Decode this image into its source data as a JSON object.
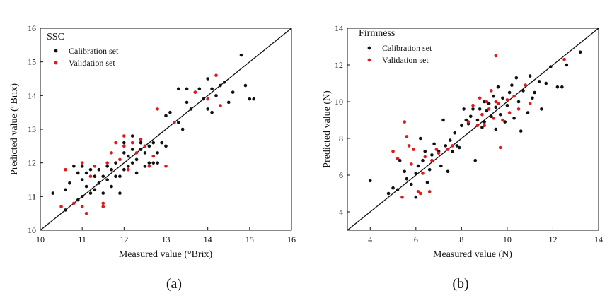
{
  "chart_data": [
    {
      "type": "scatter",
      "panel_label": "(a)",
      "title": "SSC",
      "xlabel": "Measured value (°Brix)",
      "ylabel": "Predicted value (°Brix)",
      "xlim": [
        10,
        16
      ],
      "ylim": [
        10,
        16
      ],
      "xticks": [
        10,
        11,
        12,
        13,
        14,
        15,
        16
      ],
      "yticks": [
        10,
        11,
        12,
        13,
        14,
        15,
        16
      ],
      "fit_line": {
        "x": [
          10,
          16
        ],
        "y": [
          10,
          16
        ]
      },
      "legend": {
        "position": "top-left",
        "entries": [
          "Calibration set",
          "Validation set"
        ]
      },
      "series": [
        {
          "name": "Calibration set",
          "color": "#111111",
          "points": [
            [
              10.3,
              11.1
            ],
            [
              10.6,
              10.6
            ],
            [
              10.6,
              11.2
            ],
            [
              10.7,
              11.4
            ],
            [
              10.8,
              11.9
            ],
            [
              10.9,
              10.9
            ],
            [
              10.9,
              11.7
            ],
            [
              11.0,
              11.0
            ],
            [
              11.0,
              11.5
            ],
            [
              11.0,
              11.9
            ],
            [
              11.1,
              11.3
            ],
            [
              11.1,
              11.7
            ],
            [
              11.2,
              11.1
            ],
            [
              11.2,
              11.8
            ],
            [
              11.3,
              11.2
            ],
            [
              11.3,
              11.6
            ],
            [
              11.4,
              11.4
            ],
            [
              11.4,
              11.8
            ],
            [
              11.5,
              11.1
            ],
            [
              11.5,
              11.6
            ],
            [
              11.6,
              11.5
            ],
            [
              11.6,
              11.9
            ],
            [
              11.7,
              11.3
            ],
            [
              11.7,
              11.8
            ],
            [
              11.8,
              11.6
            ],
            [
              11.8,
              12.0
            ],
            [
              11.9,
              11.1
            ],
            [
              11.9,
              11.6
            ],
            [
              12.0,
              11.8
            ],
            [
              12.0,
              12.3
            ],
            [
              12.0,
              12.6
            ],
            [
              12.1,
              11.9
            ],
            [
              12.1,
              12.2
            ],
            [
              12.2,
              12.0
            ],
            [
              12.2,
              12.4
            ],
            [
              12.2,
              12.8
            ],
            [
              12.3,
              11.7
            ],
            [
              12.3,
              12.1
            ],
            [
              12.4,
              12.4
            ],
            [
              12.4,
              12.6
            ],
            [
              12.5,
              11.9
            ],
            [
              12.5,
              12.3
            ],
            [
              12.6,
              12.0
            ],
            [
              12.6,
              12.5
            ],
            [
              12.7,
              12.0
            ],
            [
              12.7,
              12.6
            ],
            [
              12.8,
              12.0
            ],
            [
              12.8,
              12.3
            ],
            [
              12.9,
              12.6
            ],
            [
              13.0,
              12.5
            ],
            [
              13.0,
              13.4
            ],
            [
              13.1,
              13.5
            ],
            [
              13.3,
              13.2
            ],
            [
              13.3,
              14.2
            ],
            [
              13.4,
              13.0
            ],
            [
              13.5,
              13.8
            ],
            [
              13.5,
              14.2
            ],
            [
              13.6,
              13.6
            ],
            [
              13.7,
              14.1
            ],
            [
              13.8,
              14.2
            ],
            [
              13.9,
              13.9
            ],
            [
              14.0,
              14.5
            ],
            [
              14.0,
              13.6
            ],
            [
              14.1,
              14.2
            ],
            [
              14.1,
              13.5
            ],
            [
              14.2,
              14.0
            ],
            [
              14.3,
              14.3
            ],
            [
              14.3,
              13.7
            ],
            [
              14.4,
              14.4
            ],
            [
              14.5,
              13.8
            ],
            [
              14.6,
              14.1
            ],
            [
              14.8,
              15.2
            ],
            [
              14.9,
              14.3
            ],
            [
              15.0,
              13.9
            ],
            [
              15.1,
              13.9
            ]
          ]
        },
        {
          "name": "Validation set",
          "color": "#e01a1a",
          "points": [
            [
              10.5,
              10.7
            ],
            [
              10.6,
              11.8
            ],
            [
              10.8,
              10.8
            ],
            [
              11.0,
              10.7
            ],
            [
              11.0,
              12.0
            ],
            [
              11.1,
              10.5
            ],
            [
              11.2,
              11.6
            ],
            [
              11.3,
              11.9
            ],
            [
              11.5,
              10.8
            ],
            [
              11.5,
              10.7
            ],
            [
              11.6,
              12.0
            ],
            [
              11.7,
              12.3
            ],
            [
              11.8,
              12.6
            ],
            [
              11.9,
              12.1
            ],
            [
              12.0,
              12.5
            ],
            [
              12.0,
              12.8
            ],
            [
              12.1,
              11.8
            ],
            [
              12.2,
              12.6
            ],
            [
              12.3,
              12.3
            ],
            [
              12.4,
              12.7
            ],
            [
              12.5,
              12.5
            ],
            [
              12.6,
              11.9
            ],
            [
              12.7,
              12.2
            ],
            [
              12.8,
              13.6
            ],
            [
              13.0,
              11.9
            ],
            [
              13.2,
              13.2
            ],
            [
              13.7,
              14.1
            ],
            [
              14.0,
              13.9
            ],
            [
              14.2,
              14.6
            ],
            [
              14.3,
              13.7
            ]
          ]
        }
      ]
    },
    {
      "type": "scatter",
      "panel_label": "(b)",
      "title": "Firmness",
      "xlabel": "Measured value (N)",
      "ylabel": "Predicted value (N)",
      "xlim": [
        3,
        14
      ],
      "ylim": [
        3,
        14
      ],
      "xticks": [
        4,
        6,
        8,
        10,
        12,
        14
      ],
      "yticks": [
        4,
        6,
        8,
        10,
        12,
        14
      ],
      "fit_line": {
        "x": [
          3,
          14
        ],
        "y": [
          3,
          14
        ]
      },
      "legend": {
        "position": "top-left",
        "entries": [
          "Calibration set",
          "Validation set"
        ]
      },
      "series": [
        {
          "name": "Calibration set",
          "color": "#111111",
          "points": [
            [
              4.0,
              5.7
            ],
            [
              4.8,
              5.0
            ],
            [
              5.0,
              5.3
            ],
            [
              5.2,
              5.2
            ],
            [
              5.3,
              6.8
            ],
            [
              5.5,
              6.2
            ],
            [
              5.6,
              5.8
            ],
            [
              5.8,
              5.5
            ],
            [
              6.0,
              6.1
            ],
            [
              6.0,
              4.8
            ],
            [
              6.1,
              6.5
            ],
            [
              6.2,
              8.0
            ],
            [
              6.3,
              6.8
            ],
            [
              6.4,
              7.3
            ],
            [
              6.5,
              5.6
            ],
            [
              6.6,
              6.3
            ],
            [
              6.7,
              7.1
            ],
            [
              6.8,
              7.7
            ],
            [
              7.0,
              7.3
            ],
            [
              7.1,
              6.5
            ],
            [
              7.2,
              9.0
            ],
            [
              7.3,
              7.6
            ],
            [
              7.4,
              6.2
            ],
            [
              7.5,
              7.9
            ],
            [
              7.6,
              7.3
            ],
            [
              7.7,
              8.3
            ],
            [
              7.8,
              7.6
            ],
            [
              7.9,
              7.5
            ],
            [
              8.0,
              8.7
            ],
            [
              8.1,
              9.6
            ],
            [
              8.2,
              9.0
            ],
            [
              8.3,
              8.8
            ],
            [
              8.4,
              9.2
            ],
            [
              8.5,
              9.6
            ],
            [
              8.6,
              6.8
            ],
            [
              8.7,
              9.0
            ],
            [
              8.8,
              9.6
            ],
            [
              8.9,
              8.6
            ],
            [
              9.0,
              10.0
            ],
            [
              9.0,
              8.9
            ],
            [
              9.1,
              9.5
            ],
            [
              9.2,
              9.9
            ],
            [
              9.3,
              9.2
            ],
            [
              9.4,
              10.3
            ],
            [
              9.5,
              8.5
            ],
            [
              9.5,
              9.7
            ],
            [
              9.6,
              10.8
            ],
            [
              9.7,
              9.3
            ],
            [
              9.8,
              10.2
            ],
            [
              9.9,
              8.9
            ],
            [
              10.0,
              9.8
            ],
            [
              10.1,
              10.5
            ],
            [
              10.2,
              10.9
            ],
            [
              10.3,
              9.1
            ],
            [
              10.4,
              11.3
            ],
            [
              10.5,
              10.0
            ],
            [
              10.6,
              8.4
            ],
            [
              10.7,
              10.6
            ],
            [
              10.9,
              9.4
            ],
            [
              11.0,
              11.4
            ],
            [
              11.1,
              10.2
            ],
            [
              11.2,
              10.5
            ],
            [
              11.4,
              11.1
            ],
            [
              11.5,
              9.6
            ],
            [
              11.7,
              11.0
            ],
            [
              11.9,
              11.9
            ],
            [
              12.2,
              10.8
            ],
            [
              12.4,
              10.8
            ],
            [
              12.6,
              12.0
            ],
            [
              13.2,
              12.7
            ]
          ]
        },
        {
          "name": "Validation set",
          "color": "#e01a1a",
          "points": [
            [
              5.0,
              7.3
            ],
            [
              5.2,
              6.9
            ],
            [
              5.4,
              4.8
            ],
            [
              5.5,
              8.9
            ],
            [
              5.6,
              8.1
            ],
            [
              5.7,
              7.6
            ],
            [
              5.8,
              6.6
            ],
            [
              5.9,
              7.4
            ],
            [
              6.1,
              5.1
            ],
            [
              6.2,
              5.0
            ],
            [
              6.3,
              6.1
            ],
            [
              6.4,
              7.0
            ],
            [
              6.6,
              5.1
            ],
            [
              6.7,
              6.8
            ],
            [
              6.9,
              7.4
            ],
            [
              7.0,
              7.2
            ],
            [
              7.4,
              7.4
            ],
            [
              7.6,
              7.6
            ],
            [
              8.3,
              8.9
            ],
            [
              8.5,
              9.8
            ],
            [
              8.7,
              8.7
            ],
            [
              8.8,
              10.2
            ],
            [
              8.9,
              9.3
            ],
            [
              9.0,
              8.7
            ],
            [
              9.1,
              10.0
            ],
            [
              9.2,
              9.6
            ],
            [
              9.3,
              10.6
            ],
            [
              9.4,
              9.1
            ],
            [
              9.5,
              10.0
            ],
            [
              9.5,
              12.5
            ],
            [
              9.6,
              9.9
            ],
            [
              9.7,
              7.5
            ],
            [
              9.8,
              9.0
            ],
            [
              10.0,
              10.1
            ],
            [
              10.1,
              9.4
            ],
            [
              10.3,
              10.3
            ],
            [
              10.5,
              9.6
            ],
            [
              10.8,
              10.9
            ],
            [
              11.0,
              9.9
            ],
            [
              12.5,
              12.3
            ]
          ]
        }
      ]
    }
  ]
}
